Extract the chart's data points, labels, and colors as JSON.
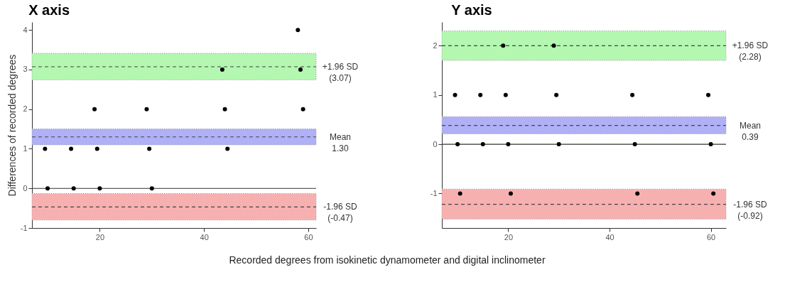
{
  "chart_data": [
    {
      "type": "scatter",
      "title": "X axis",
      "ylabel": "Differences of recorded degrees",
      "xlabel": "Recorded degrees from isokinetic dynamometer and digital inclinometer",
      "marker": "circle",
      "grid": false,
      "xlim": [
        7,
        61.5
      ],
      "xticks": [
        20,
        40,
        60
      ],
      "ylim": [
        -1,
        4.2
      ],
      "yticks": [
        -1,
        0,
        1,
        2,
        3,
        4
      ],
      "series": [
        {
          "color": "#000000",
          "x": [
            9.5,
            10,
            14.5,
            15,
            19,
            19.5,
            20,
            29,
            29.5,
            30,
            43.5,
            44,
            44.5,
            58,
            58.5,
            59
          ],
          "values": [
            1,
            0,
            1,
            0,
            2,
            1,
            0,
            2,
            1,
            0,
            3,
            2,
            1,
            4,
            3,
            2
          ]
        }
      ],
      "bands": [
        {
          "axis": "y",
          "from": 2.74,
          "to": 3.41,
          "color": "#b3f7b0"
        },
        {
          "axis": "y",
          "from": 1.1,
          "to": 1.5,
          "color": "#b0b0f7"
        },
        {
          "axis": "y",
          "from": -0.8,
          "to": -0.13,
          "color": "#f7b0b0"
        }
      ],
      "ref_lines": [
        {
          "axis": "y",
          "value": 3.07,
          "label": "+1.96 SD\n(3.07)",
          "line_style": "dashed",
          "color": "#444444"
        },
        {
          "axis": "y",
          "value": 1.3,
          "label": "Mean\n1.30",
          "line_style": "dashed",
          "color": "#444444"
        },
        {
          "axis": "y",
          "value": -0.47,
          "label": "-1.96 SD\n(-0.47)",
          "line_style": "dashed",
          "color": "#444444"
        },
        {
          "axis": "y",
          "value": 0,
          "line_style": "solid",
          "color": "#333333"
        }
      ]
    },
    {
      "type": "scatter",
      "title": "Y axis",
      "marker": "circle",
      "grid": false,
      "xlim": [
        6.9,
        63
      ],
      "xticks": [
        20,
        40,
        60
      ],
      "ylim": [
        -1.7,
        2.48
      ],
      "yticks": [
        -1,
        0,
        1,
        2
      ],
      "series": [
        {
          "color": "#000000",
          "x": [
            9.5,
            10,
            10.5,
            14.5,
            15,
            19,
            19.5,
            20,
            20.5,
            29,
            29.5,
            30,
            44.5,
            45,
            45.5,
            59.5,
            60,
            60.5
          ],
          "values": [
            1,
            0,
            -1,
            1,
            0,
            2,
            1,
            0,
            -1,
            2,
            1,
            0,
            1,
            0,
            -1,
            1,
            0,
            -1
          ]
        }
      ],
      "bands": [
        {
          "axis": "y",
          "from": 1.7,
          "to": 2.3,
          "color": "#b3f7b0"
        },
        {
          "axis": "y",
          "from": 0.21,
          "to": 0.56,
          "color": "#b0b0f7"
        },
        {
          "axis": "y",
          "from": -1.52,
          "to": -0.91,
          "color": "#f7b0b0"
        }
      ],
      "ref_lines": [
        {
          "axis": "y",
          "value": 2.0,
          "label": "+1.96 SD\n(2.28)",
          "line_style": "dashed",
          "color": "#444444"
        },
        {
          "axis": "y",
          "value": 0.38,
          "label": "Mean\n0.39",
          "line_style": "dashed",
          "color": "#444444"
        },
        {
          "axis": "y",
          "value": -1.22,
          "label": "-1.96 SD\n(-0.92)",
          "line_style": "dashed",
          "color": "#444444"
        },
        {
          "axis": "y",
          "value": 0,
          "line_style": "solid",
          "color": "#333333"
        }
      ]
    }
  ]
}
